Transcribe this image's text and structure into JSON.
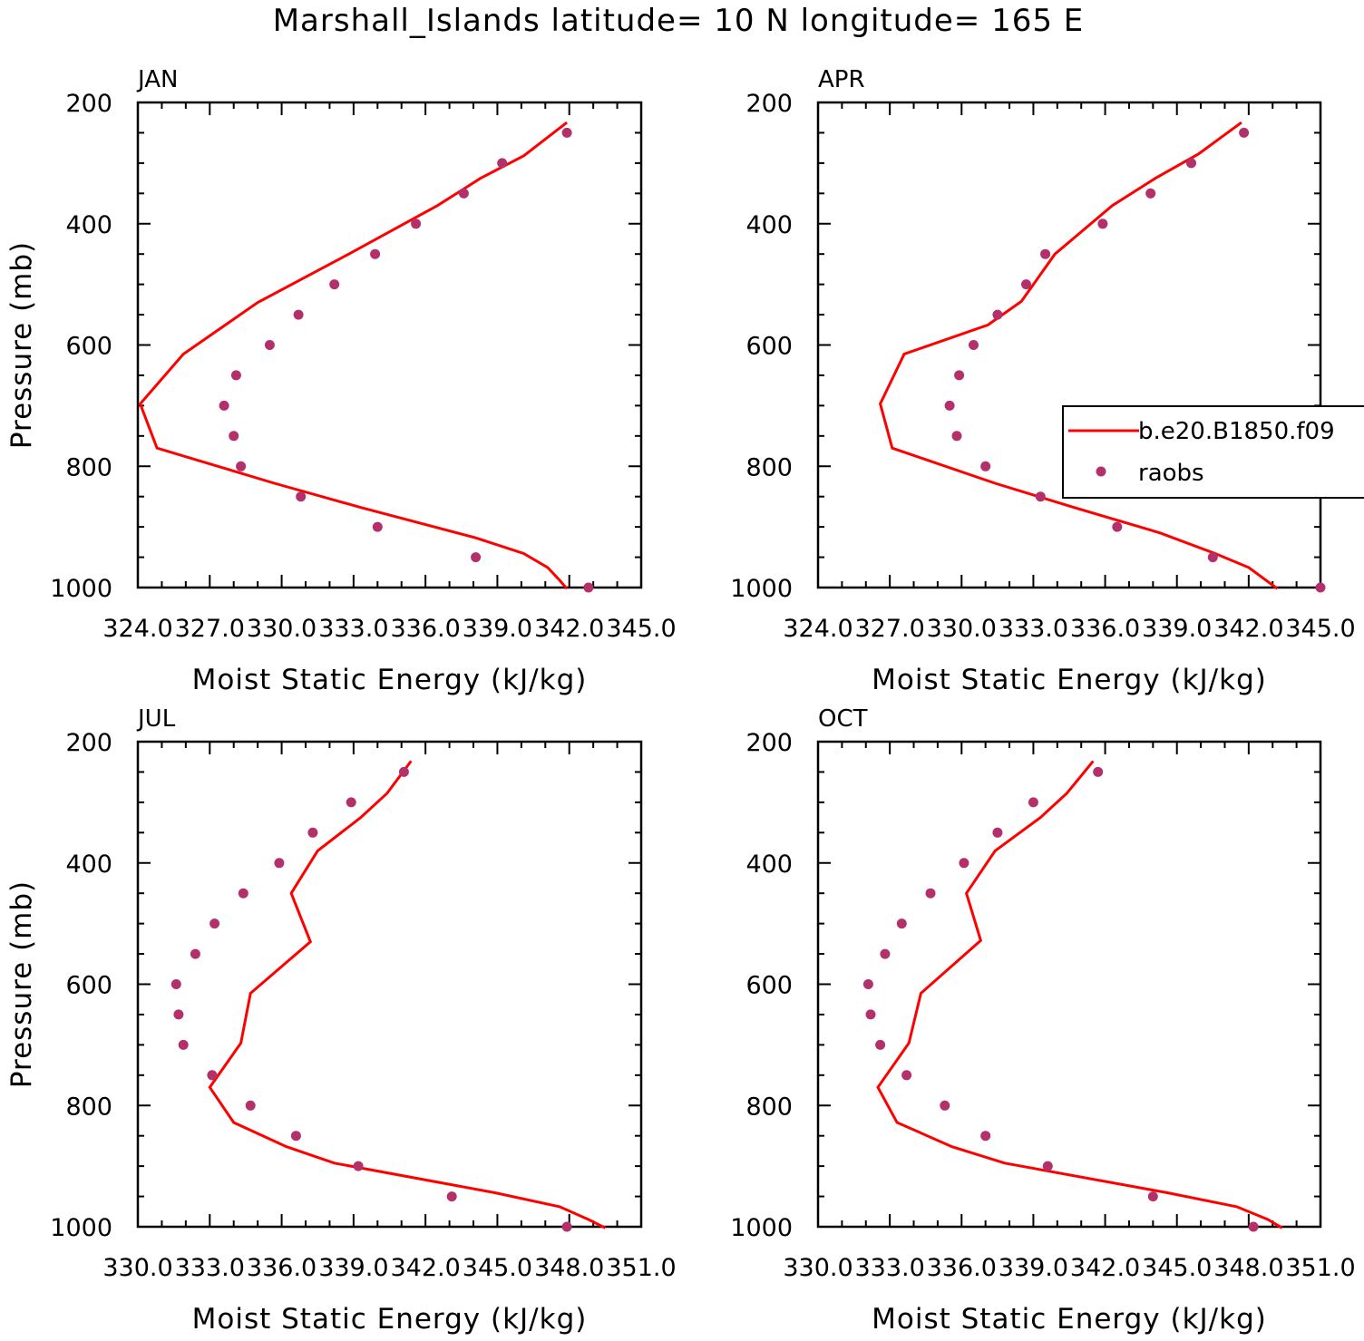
{
  "title": "Marshall_Islands  latitude= 10 N longitude= 165 E",
  "colors": {
    "model": "#ff0000",
    "obs": "#b3306b",
    "axes": "#000000"
  },
  "legend": {
    "model_label": "b.e20.B1850.f09",
    "obs_label": "raobs",
    "placement": "right, over APR panel"
  },
  "chart_data": [
    {
      "type": "line",
      "panel": "JAN",
      "xlabel": "Moist Static Energy (kJ/kg)",
      "ylabel": "Pressure (mb)",
      "xlim": [
        324.0,
        345.0
      ],
      "ylim": [
        1000,
        200
      ],
      "xticks": [
        324.0,
        327.0,
        330.0,
        333.0,
        336.0,
        339.0,
        342.0,
        345.0
      ],
      "xtick_labels": [
        "324.0",
        "327.0",
        "330.0",
        "333.0",
        "336.0",
        "339.0",
        "342.0",
        "345.0"
      ],
      "yticks": [
        200,
        400,
        600,
        800,
        1000
      ],
      "series": [
        {
          "name": "b.e20.B1850.f09",
          "style": "line",
          "x": [
            341.9,
            340.1,
            338.3,
            336.5,
            332.8,
            329.0,
            325.9,
            324.1,
            324.8,
            329.7,
            333.3,
            338.1,
            340.1,
            341.1,
            341.6,
            341.9
          ],
          "y": [
            233,
            288,
            325,
            370,
            450,
            530,
            615,
            697,
            770,
            828,
            868,
            918,
            944,
            967,
            988,
            1002
          ]
        },
        {
          "name": "raobs",
          "style": "markers",
          "x": [
            341.9,
            339.2,
            337.6,
            335.6,
            333.9,
            332.2,
            330.7,
            329.5,
            328.1,
            327.6,
            328.0,
            328.3,
            330.8,
            334.0,
            338.1,
            342.8
          ],
          "y": [
            250,
            300,
            350,
            400,
            450,
            500,
            550,
            600,
            650,
            700,
            750,
            800,
            850,
            900,
            950,
            1000
          ]
        }
      ]
    },
    {
      "type": "line",
      "panel": "APR",
      "xlabel": "Moist Static Energy (kJ/kg)",
      "ylabel": "",
      "xlim": [
        324.0,
        345.0
      ],
      "ylim": [
        1000,
        200
      ],
      "xticks": [
        324.0,
        327.0,
        330.0,
        333.0,
        336.0,
        339.0,
        342.0,
        345.0
      ],
      "xtick_labels": [
        "324.0",
        "327.0",
        "330.0",
        "333.0",
        "336.0",
        "339.0",
        "342.0",
        "345.0"
      ],
      "yticks": [
        200,
        400,
        600,
        800,
        1000
      ],
      "series": [
        {
          "name": "b.e20.B1850.f09",
          "style": "line",
          "x": [
            341.7,
            339.9,
            338.1,
            336.3,
            333.9,
            332.5,
            331.1,
            327.6,
            326.6,
            327.1,
            331.4,
            334.7,
            338.3,
            340.6,
            342.0,
            343.2
          ],
          "y": [
            233,
            285,
            325,
            370,
            450,
            528,
            567,
            615,
            697,
            770,
            828,
            868,
            910,
            944,
            967,
            1002
          ]
        },
        {
          "name": "raobs",
          "style": "markers",
          "x": [
            341.8,
            339.6,
            337.9,
            335.9,
            333.5,
            332.7,
            331.5,
            330.5,
            329.9,
            329.5,
            329.8,
            331.0,
            333.3,
            336.5,
            340.5,
            345.0
          ],
          "y": [
            250,
            300,
            350,
            400,
            450,
            500,
            550,
            600,
            650,
            700,
            750,
            800,
            850,
            900,
            950,
            1000
          ]
        }
      ]
    },
    {
      "type": "line",
      "panel": "JUL",
      "xlabel": "Moist Static Energy (kJ/kg)",
      "ylabel": "Pressure (mb)",
      "xlim": [
        330.0,
        351.0
      ],
      "ylim": [
        1000,
        200
      ],
      "xticks": [
        330.0,
        333.0,
        336.0,
        339.0,
        342.0,
        345.0,
        348.0,
        351.0
      ],
      "xtick_labels": [
        "330.0",
        "333.0",
        "336.0",
        "339.0",
        "342.0",
        "345.0",
        "348.0",
        "351.0"
      ],
      "yticks": [
        200,
        400,
        600,
        800,
        1000
      ],
      "series": [
        {
          "name": "b.e20.B1850.f09",
          "style": "line",
          "x": [
            341.4,
            340.4,
            339.3,
            337.5,
            336.4,
            337.2,
            334.7,
            334.3,
            333.0,
            334.0,
            336.2,
            338.2,
            344.9,
            347.6,
            348.8,
            349.5
          ],
          "y": [
            232,
            285,
            325,
            380,
            450,
            530,
            615,
            697,
            770,
            828,
            868,
            895,
            944,
            967,
            988,
            1002
          ]
        },
        {
          "name": "raobs",
          "style": "markers",
          "x": [
            341.1,
            338.9,
            337.3,
            335.9,
            334.4,
            333.2,
            332.4,
            331.6,
            331.7,
            331.9,
            333.1,
            334.7,
            336.6,
            339.2,
            343.1,
            347.9
          ],
          "y": [
            250,
            300,
            350,
            400,
            450,
            500,
            550,
            600,
            650,
            700,
            750,
            800,
            850,
            900,
            950,
            1000
          ]
        }
      ]
    },
    {
      "type": "line",
      "panel": "OCT",
      "xlabel": "Moist Static Energy (kJ/kg)",
      "ylabel": "",
      "xlim": [
        330.0,
        351.0
      ],
      "ylim": [
        1000,
        200
      ],
      "xticks": [
        330.0,
        333.0,
        336.0,
        339.0,
        342.0,
        345.0,
        348.0,
        351.0
      ],
      "xtick_labels": [
        "330.0",
        "333.0",
        "336.0",
        "339.0",
        "342.0",
        "345.0",
        "348.0",
        "351.0"
      ],
      "yticks": [
        200,
        400,
        600,
        800,
        1000
      ],
      "series": [
        {
          "name": "b.e20.B1850.f09",
          "style": "line",
          "x": [
            341.5,
            340.4,
            339.3,
            337.4,
            336.2,
            336.8,
            334.3,
            333.8,
            332.5,
            333.3,
            335.6,
            337.8,
            344.6,
            347.5,
            348.8,
            349.4
          ],
          "y": [
            232,
            285,
            325,
            380,
            450,
            528,
            615,
            697,
            770,
            828,
            868,
            895,
            944,
            967,
            988,
            1002
          ]
        },
        {
          "name": "raobs",
          "style": "markers",
          "x": [
            341.7,
            339.0,
            337.5,
            336.1,
            334.7,
            333.5,
            332.8,
            332.1,
            332.2,
            332.6,
            333.7,
            335.3,
            337.0,
            339.6,
            344.0,
            348.2
          ],
          "y": [
            250,
            300,
            350,
            400,
            450,
            500,
            550,
            600,
            650,
            700,
            750,
            800,
            850,
            900,
            950,
            1000
          ]
        }
      ]
    }
  ]
}
